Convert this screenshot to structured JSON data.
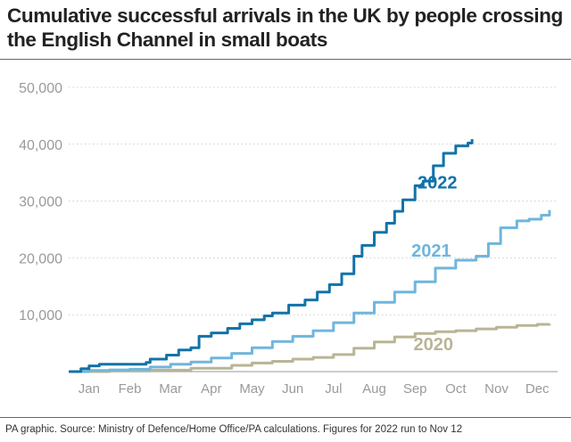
{
  "title": "Cumulative successful arrivals in the UK by people crossing the English Channel in small boats",
  "source": "PA graphic. Source: Ministry of Defence/Home Office/PA calculations. Figures for 2022 run to Nov 12",
  "colors": {
    "y2022": "#1273a8",
    "y2021": "#6fb6dc",
    "y2020": "#b8b596",
    "grid": "#cccccc",
    "tick": "#9a9a9a"
  },
  "chart_data": {
    "type": "line",
    "title": "Cumulative successful arrivals in the UK by people crossing the English Channel in small boats",
    "xlabel": "",
    "ylabel": "",
    "x_unit": "month (1 = start of January, 13 = end of December)",
    "xlim": [
      1,
      13
    ],
    "ylim": [
      0,
      50000
    ],
    "y_ticks": [
      10000,
      20000,
      30000,
      40000,
      50000
    ],
    "y_tick_labels": [
      "10,000",
      "20,000",
      "30,000",
      "40,000",
      "50,000"
    ],
    "x_tick_labels": [
      "Jan",
      "Feb",
      "Mar",
      "Apr",
      "May",
      "Jun",
      "Jul",
      "Aug",
      "Sep",
      "Oct",
      "Nov",
      "Dec"
    ],
    "grid": true,
    "legend": "labels placed next to lines",
    "series": [
      {
        "name": "2022",
        "color": "#1273a8",
        "x": [
          1.0,
          1.3,
          1.5,
          1.75,
          2.5,
          2.9,
          3.0,
          3.4,
          3.7,
          4.0,
          4.2,
          4.5,
          4.9,
          5.2,
          5.5,
          5.8,
          6.0,
          6.4,
          6.8,
          7.1,
          7.4,
          7.7,
          8.0,
          8.2,
          8.5,
          8.8,
          9.0,
          9.2,
          9.5,
          9.7,
          9.95,
          10.2,
          10.5,
          10.8,
          10.9
        ],
        "values": [
          0,
          500,
          1000,
          1300,
          1300,
          1600,
          2200,
          2900,
          3800,
          4200,
          6200,
          6800,
          7600,
          8400,
          9100,
          9800,
          10300,
          11700,
          12600,
          14000,
          15300,
          17200,
          20300,
          22200,
          24500,
          26100,
          28200,
          30200,
          32700,
          33500,
          36200,
          38400,
          39700,
          40200,
          40900
        ]
      },
      {
        "name": "2021",
        "color": "#6fb6dc",
        "x": [
          1.0,
          1.5,
          2.0,
          2.5,
          3.0,
          3.5,
          4.0,
          4.5,
          5.0,
          5.5,
          6.0,
          6.5,
          7.0,
          7.5,
          8.0,
          8.5,
          9.0,
          9.5,
          10.0,
          10.5,
          11.0,
          11.3,
          11.6,
          12.0,
          12.3,
          12.6,
          12.8
        ],
        "values": [
          0,
          200,
          300,
          400,
          800,
          1300,
          1700,
          2400,
          3200,
          4200,
          5300,
          6200,
          7200,
          8600,
          10300,
          12200,
          14000,
          15800,
          18200,
          19600,
          20300,
          22500,
          25300,
          26500,
          26800,
          27500,
          28400
        ]
      },
      {
        "name": "2020",
        "color": "#b8b596",
        "x": [
          1.0,
          2.0,
          3.0,
          4.0,
          5.0,
          5.5,
          6.0,
          6.5,
          7.0,
          7.5,
          8.0,
          8.5,
          9.0,
          9.5,
          10.0,
          10.5,
          11.0,
          11.5,
          12.0,
          12.5,
          12.8
        ],
        "values": [
          0,
          100,
          250,
          600,
          1100,
          1500,
          1800,
          2200,
          2500,
          3000,
          4100,
          5200,
          6100,
          6700,
          7000,
          7200,
          7500,
          7800,
          8100,
          8300,
          8400
        ]
      }
    ]
  }
}
